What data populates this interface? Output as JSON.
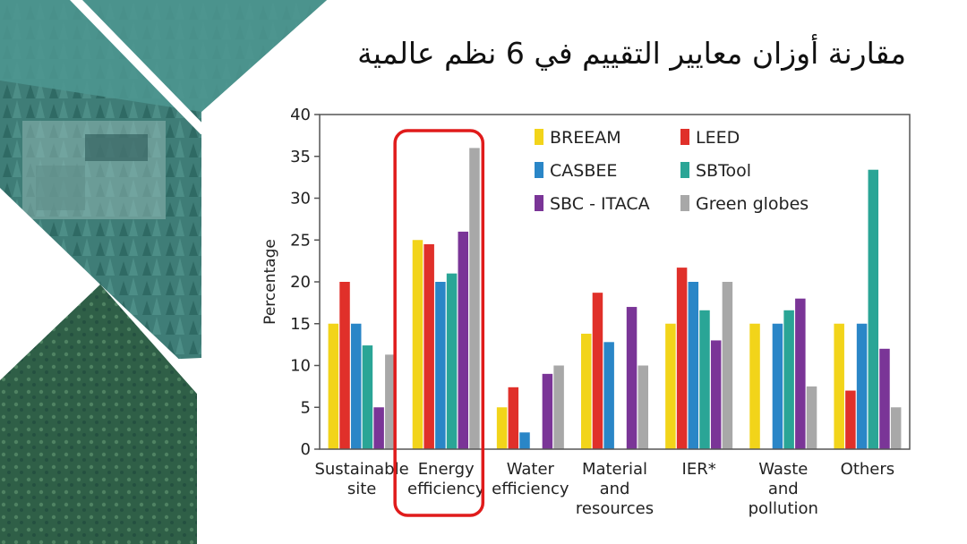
{
  "slide": {
    "title": "مقارنة أوزان معايير التقييم في 6 نظم عالمية"
  },
  "colors": {
    "teal": "#3b8a80",
    "highlight": "#e01b1b"
  },
  "chart_data": {
    "type": "bar",
    "ylabel": "Percentage",
    "ylim": [
      0,
      40
    ],
    "yticks": [
      0,
      5,
      10,
      15,
      20,
      25,
      30,
      35,
      40
    ],
    "categories": [
      [
        "Sustainable",
        "site"
      ],
      [
        "Energy",
        "efficiency"
      ],
      [
        "Water",
        "efficiency"
      ],
      [
        "Material",
        "and",
        "resources"
      ],
      [
        "IER*"
      ],
      [
        "Waste",
        "and",
        "pollution"
      ],
      [
        "Others"
      ]
    ],
    "highlighted_category": 1,
    "legend": {
      "placement": "top-right",
      "columns": 2
    },
    "series": [
      {
        "name": "BREEAM",
        "color": "#f2d41a",
        "values": [
          15,
          25,
          5,
          13.8,
          15,
          15,
          15
        ]
      },
      {
        "name": "LEED",
        "color": "#e0302a",
        "values": [
          20,
          24.5,
          7.4,
          18.7,
          21.7,
          0,
          7
        ]
      },
      {
        "name": "CASBEE",
        "color": "#2a86c7",
        "values": [
          15,
          20,
          2,
          12.8,
          20,
          15,
          15
        ]
      },
      {
        "name": "SBTool",
        "color": "#2aa596",
        "values": [
          12.4,
          21,
          0,
          0,
          16.6,
          16.6,
          33.4
        ]
      },
      {
        "name": "SBC - ITACA",
        "color": "#7a3597",
        "values": [
          5,
          26,
          9,
          17,
          13,
          18,
          12
        ]
      },
      {
        "name": "Green globes",
        "color": "#a8a8a8",
        "values": [
          11.3,
          36,
          10,
          10,
          20,
          7.5,
          5
        ]
      }
    ]
  }
}
